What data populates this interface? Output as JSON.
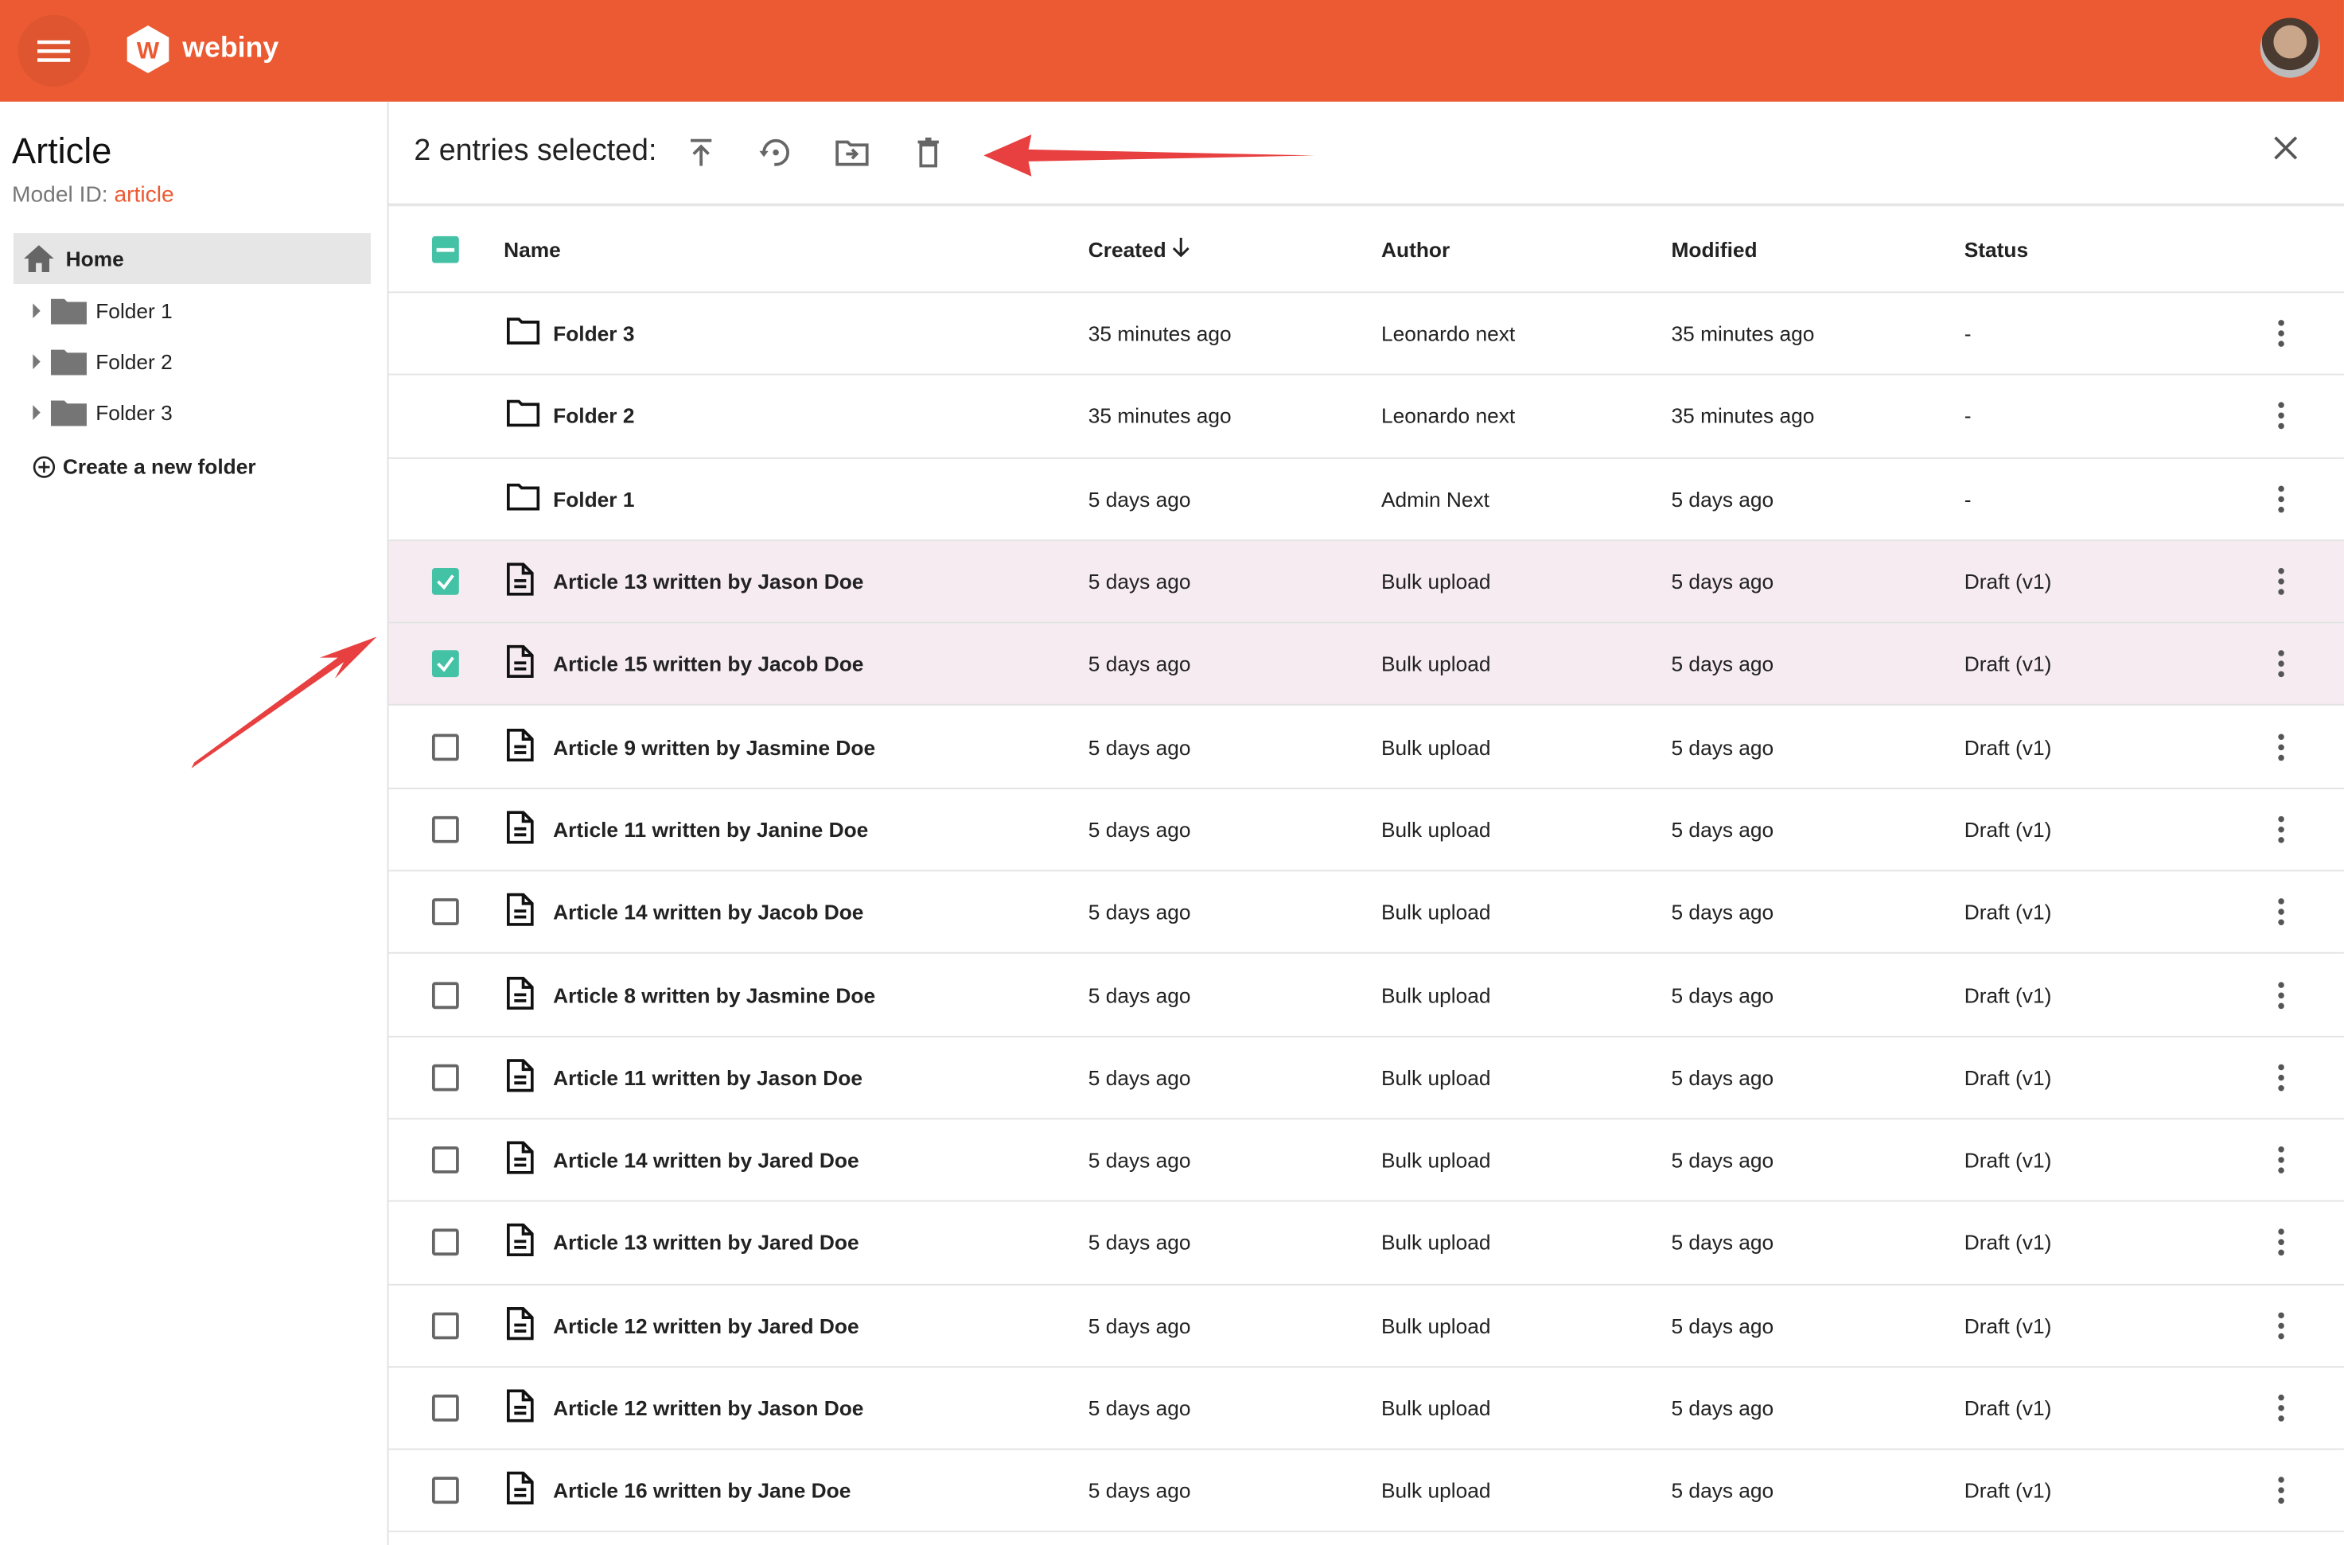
{
  "app": {
    "brand": "webiny",
    "accent": "#eb5a32",
    "checkbox_color": "#44c2a6",
    "selected_row_color": "#f6ebf0"
  },
  "sidebar": {
    "title": "Article",
    "model_id_label": "Model ID:",
    "model_id": "article",
    "home": "Home",
    "folders": [
      "Folder 1",
      "Folder 2",
      "Folder 3"
    ],
    "create_folder": "Create a new folder"
  },
  "toolbar": {
    "selected_label": "2 entries selected:",
    "actions": [
      "publish-icon",
      "restore-icon",
      "move-to-folder-icon",
      "delete-icon"
    ]
  },
  "table": {
    "headers": {
      "name": "Name",
      "created": "Created",
      "author": "Author",
      "modified": "Modified",
      "status": "Status"
    },
    "rows": [
      {
        "type": "folder",
        "name": "Folder 3",
        "created": "35 minutes ago",
        "author": "Leonardo next",
        "modified": "35 minutes ago",
        "status": "-",
        "selected": false
      },
      {
        "type": "folder",
        "name": "Folder 2",
        "created": "35 minutes ago",
        "author": "Leonardo next",
        "modified": "35 minutes ago",
        "status": "-",
        "selected": false
      },
      {
        "type": "folder",
        "name": "Folder 1",
        "created": "5 days ago",
        "author": "Admin Next",
        "modified": "5 days ago",
        "status": "-",
        "selected": false
      },
      {
        "type": "entry",
        "name": "Article 13 written by Jason Doe",
        "created": "5 days ago",
        "author": "Bulk upload",
        "modified": "5 days ago",
        "status": "Draft (v1)",
        "selected": true
      },
      {
        "type": "entry",
        "name": "Article 15 written by Jacob Doe",
        "created": "5 days ago",
        "author": "Bulk upload",
        "modified": "5 days ago",
        "status": "Draft (v1)",
        "selected": true
      },
      {
        "type": "entry",
        "name": "Article 9 written by Jasmine Doe",
        "created": "5 days ago",
        "author": "Bulk upload",
        "modified": "5 days ago",
        "status": "Draft (v1)",
        "selected": false
      },
      {
        "type": "entry",
        "name": "Article 11 written by Janine Doe",
        "created": "5 days ago",
        "author": "Bulk upload",
        "modified": "5 days ago",
        "status": "Draft (v1)",
        "selected": false
      },
      {
        "type": "entry",
        "name": "Article 14 written by Jacob Doe",
        "created": "5 days ago",
        "author": "Bulk upload",
        "modified": "5 days ago",
        "status": "Draft (v1)",
        "selected": false
      },
      {
        "type": "entry",
        "name": "Article 8 written by Jasmine Doe",
        "created": "5 days ago",
        "author": "Bulk upload",
        "modified": "5 days ago",
        "status": "Draft (v1)",
        "selected": false
      },
      {
        "type": "entry",
        "name": "Article 11 written by Jason Doe",
        "created": "5 days ago",
        "author": "Bulk upload",
        "modified": "5 days ago",
        "status": "Draft (v1)",
        "selected": false
      },
      {
        "type": "entry",
        "name": "Article 14 written by Jared Doe",
        "created": "5 days ago",
        "author": "Bulk upload",
        "modified": "5 days ago",
        "status": "Draft (v1)",
        "selected": false
      },
      {
        "type": "entry",
        "name": "Article 13 written by Jared Doe",
        "created": "5 days ago",
        "author": "Bulk upload",
        "modified": "5 days ago",
        "status": "Draft (v1)",
        "selected": false
      },
      {
        "type": "entry",
        "name": "Article 12 written by Jared Doe",
        "created": "5 days ago",
        "author": "Bulk upload",
        "modified": "5 days ago",
        "status": "Draft (v1)",
        "selected": false
      },
      {
        "type": "entry",
        "name": "Article 12 written by Jason Doe",
        "created": "5 days ago",
        "author": "Bulk upload",
        "modified": "5 days ago",
        "status": "Draft (v1)",
        "selected": false
      },
      {
        "type": "entry",
        "name": "Article 16 written by Jane Doe",
        "created": "5 days ago",
        "author": "Bulk upload",
        "modified": "5 days ago",
        "status": "Draft (v1)",
        "selected": false
      }
    ]
  },
  "annotations": {
    "arrow_color": "#e84040"
  }
}
